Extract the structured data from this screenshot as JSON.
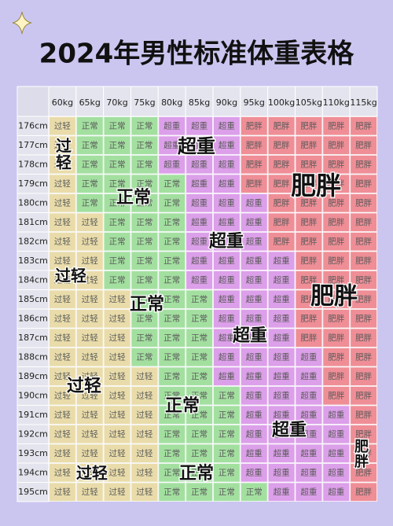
{
  "title": "2024年男性标准体重表格",
  "styles": {
    "过轻": "#e9dcaa",
    "正常": "#a3e0a0",
    "超重": "#dc9fe9",
    "肥胖": "#ef8e96"
  },
  "table": {
    "columns": [
      "60kg",
      "65kg",
      "70kg",
      "75kg",
      "80kg",
      "85kg",
      "90kg",
      "95kg",
      "100kg",
      "105kg",
      "110kg",
      "115kg"
    ],
    "rows": [
      {
        "height": "176cm",
        "cells": [
          "过轻",
          "正常",
          "正常",
          "正常",
          "超重",
          "超重",
          "超重",
          "肥胖",
          "肥胖",
          "肥胖",
          "肥胖",
          "肥胖"
        ]
      },
      {
        "height": "177cm",
        "cells": [
          "过轻",
          "正常",
          "正常",
          "正常",
          "超重",
          "超重",
          "超重",
          "肥胖",
          "肥胖",
          "肥胖",
          "肥胖",
          "肥胖"
        ]
      },
      {
        "height": "178cm",
        "cells": [
          "过轻",
          "正常",
          "正常",
          "正常",
          "超重",
          "超重",
          "超重",
          "肥胖",
          "肥胖",
          "肥胖",
          "肥胖",
          "肥胖"
        ]
      },
      {
        "height": "179cm",
        "cells": [
          "过轻",
          "正常",
          "正常",
          "正常",
          "正常",
          "超重",
          "超重",
          "肥胖",
          "肥胖",
          "肥胖",
          "肥胖",
          "肥胖"
        ]
      },
      {
        "height": "180cm",
        "cells": [
          "过轻",
          "正常",
          "正常",
          "正常",
          "正常",
          "超重",
          "超重",
          "超重",
          "肥胖",
          "肥胖",
          "肥胖",
          "肥胖"
        ]
      },
      {
        "height": "181cm",
        "cells": [
          "过轻",
          "过轻",
          "正常",
          "正常",
          "正常",
          "超重",
          "超重",
          "超重",
          "肥胖",
          "肥胖",
          "肥胖",
          "肥胖"
        ]
      },
      {
        "height": "182cm",
        "cells": [
          "过轻",
          "过轻",
          "正常",
          "正常",
          "正常",
          "超重",
          "超重",
          "超重",
          "肥胖",
          "肥胖",
          "肥胖",
          "肥胖"
        ]
      },
      {
        "height": "183cm",
        "cells": [
          "过轻",
          "过轻",
          "正常",
          "正常",
          "正常",
          "超重",
          "超重",
          "超重",
          "超重",
          "肥胖",
          "肥胖",
          "肥胖"
        ]
      },
      {
        "height": "184cm",
        "cells": [
          "过轻",
          "过轻",
          "正常",
          "正常",
          "正常",
          "超重",
          "超重",
          "超重",
          "超重",
          "肥胖",
          "肥胖",
          "肥胖"
        ]
      },
      {
        "height": "185cm",
        "cells": [
          "过轻",
          "过轻",
          "过轻",
          "正常",
          "正常",
          "正常",
          "超重",
          "超重",
          "超重",
          "肥胖",
          "肥胖",
          "肥胖"
        ]
      },
      {
        "height": "186cm",
        "cells": [
          "过轻",
          "过轻",
          "过轻",
          "正常",
          "正常",
          "正常",
          "超重",
          "超重",
          "超重",
          "肥胖",
          "肥胖",
          "肥胖"
        ]
      },
      {
        "height": "187cm",
        "cells": [
          "过轻",
          "过轻",
          "过轻",
          "正常",
          "正常",
          "正常",
          "超重",
          "超重",
          "超重",
          "肥胖",
          "肥胖",
          "肥胖"
        ]
      },
      {
        "height": "188cm",
        "cells": [
          "过轻",
          "过轻",
          "过轻",
          "正常",
          "正常",
          "正常",
          "超重",
          "超重",
          "超重",
          "超重",
          "肥胖",
          "肥胖"
        ]
      },
      {
        "height": "189cm",
        "cells": [
          "过轻",
          "过轻",
          "过轻",
          "过轻",
          "正常",
          "正常",
          "超重",
          "超重",
          "超重",
          "超重",
          "肥胖",
          "肥胖"
        ]
      },
      {
        "height": "190cm",
        "cells": [
          "过轻",
          "过轻",
          "过轻",
          "过轻",
          "正常",
          "正常",
          "正常",
          "超重",
          "超重",
          "超重",
          "肥胖",
          "肥胖"
        ]
      },
      {
        "height": "191cm",
        "cells": [
          "过轻",
          "过轻",
          "过轻",
          "过轻",
          "正常",
          "正常",
          "正常",
          "超重",
          "超重",
          "超重",
          "超重",
          "肥胖"
        ]
      },
      {
        "height": "192cm",
        "cells": [
          "过轻",
          "过轻",
          "过轻",
          "过轻",
          "正常",
          "正常",
          "正常",
          "超重",
          "超重",
          "超重",
          "超重",
          "肥胖"
        ]
      },
      {
        "height": "193cm",
        "cells": [
          "过轻",
          "过轻",
          "过轻",
          "过轻",
          "正常",
          "正常",
          "正常",
          "超重",
          "超重",
          "超重",
          "超重",
          "肥胖"
        ]
      },
      {
        "height": "194cm",
        "cells": [
          "过轻",
          "过轻",
          "过轻",
          "过轻",
          "正常",
          "正常",
          "正常",
          "超重",
          "超重",
          "超重",
          "超重",
          "肥胖"
        ]
      },
      {
        "height": "195cm",
        "cells": [
          "过轻",
          "过轻",
          "过轻",
          "过轻",
          "正常",
          "正常",
          "正常",
          "正常",
          "超重",
          "超重",
          "超重",
          "肥胖"
        ]
      }
    ]
  },
  "overlays": [
    {
      "text": "过轻",
      "vertical": true
    },
    {
      "text": "超重"
    },
    {
      "text": "正常"
    },
    {
      "text": "肥胖"
    },
    {
      "text": "超重"
    },
    {
      "text": "过轻"
    },
    {
      "text": "正常"
    },
    {
      "text": "肥胖"
    },
    {
      "text": "超重"
    },
    {
      "text": "过轻"
    },
    {
      "text": "正常"
    },
    {
      "text": "超重"
    },
    {
      "text": "肥胖",
      "vertical": true
    },
    {
      "text": "过轻"
    },
    {
      "text": "正常"
    }
  ]
}
